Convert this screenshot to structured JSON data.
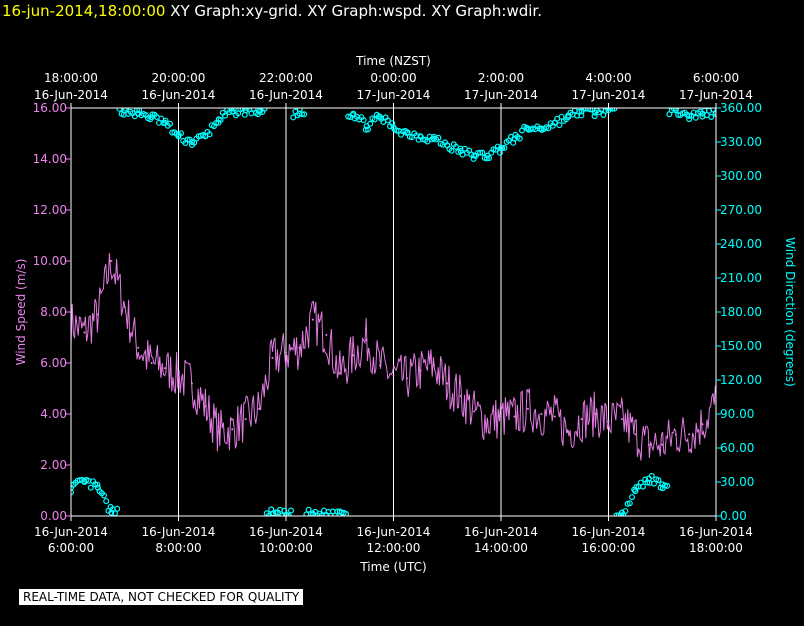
{
  "header": {
    "timestamp": "16-jun-2014,18:00:00",
    "graphs": "XY Graph:xy-grid.  XY Graph:wspd.  XY Graph:wdir."
  },
  "footer": {
    "note": "REAL-TIME DATA, NOT CHECKED FOR QUALITY"
  },
  "colors": {
    "speed": "#ee82ee",
    "direction": "#00ffff",
    "grid": "#ffffff",
    "text": "#ffffff"
  },
  "chart_data": {
    "type": "line",
    "x_top_label": "Time (NZST)",
    "x_bottom_label": "Time (UTC)",
    "y_left_label": "Wind Speed (m/s)",
    "y_right_label": "Wind Direction (degrees)",
    "top_ticks": [
      {
        "time": "18:00:00",
        "date": "16-Jun-2014"
      },
      {
        "time": "20:00:00",
        "date": "16-Jun-2014"
      },
      {
        "time": "22:00:00",
        "date": "16-Jun-2014"
      },
      {
        "time": "0:00:00",
        "date": "17-Jun-2014"
      },
      {
        "time": "2:00:00",
        "date": "17-Jun-2014"
      },
      {
        "time": "4:00:00",
        "date": "17-Jun-2014"
      },
      {
        "time": "6:00:00",
        "date": "17-Jun-2014"
      }
    ],
    "bottom_ticks": [
      {
        "date": "16-Jun-2014",
        "time": "6:00:00"
      },
      {
        "date": "16-Jun-2014",
        "time": "8:00:00"
      },
      {
        "date": "16-Jun-2014",
        "time": "10:00:00"
      },
      {
        "date": "16-Jun-2014",
        "time": "12:00:00"
      },
      {
        "date": "16-Jun-2014",
        "time": "14:00:00"
      },
      {
        "date": "16-Jun-2014",
        "time": "16:00:00"
      },
      {
        "date": "16-Jun-2014",
        "time": "18:00:00"
      }
    ],
    "y_left_ticks": [
      "0.00",
      "2.00",
      "4.00",
      "6.00",
      "8.00",
      "10.00",
      "12.00",
      "14.00",
      "16.00"
    ],
    "y_right_ticks": [
      "0.00",
      "30.00",
      "60.00",
      "90.00",
      "120.00",
      "150.00",
      "180.00",
      "210.00",
      "240.00",
      "270.00",
      "300.00",
      "330.00",
      "360.00"
    ],
    "x_range_utc_hours": [
      6,
      18
    ],
    "y_left_range": [
      0,
      16
    ],
    "y_right_range": [
      0,
      360
    ],
    "grid": "vertical",
    "wind_speed": {
      "marker": "line",
      "x_utc_hours": [
        6.0,
        6.25,
        6.5,
        6.75,
        7.0,
        7.25,
        7.5,
        7.75,
        8.0,
        8.25,
        8.5,
        8.75,
        9.0,
        9.25,
        9.5,
        9.75,
        10.0,
        10.25,
        10.5,
        10.75,
        11.0,
        11.25,
        11.5,
        11.75,
        12.0,
        12.25,
        12.5,
        12.75,
        13.0,
        13.25,
        13.5,
        13.75,
        14.0,
        14.25,
        14.5,
        14.75,
        15.0,
        15.25,
        15.5,
        15.75,
        16.0,
        16.25,
        16.5,
        16.75,
        17.0,
        17.25,
        17.5,
        17.75,
        18.0
      ],
      "values": [
        7.6,
        7.2,
        7.9,
        10.0,
        8.2,
        6.6,
        6.0,
        5.8,
        5.5,
        5.2,
        4.3,
        3.3,
        3.4,
        3.8,
        4.2,
        6.2,
        6.4,
        6.6,
        7.7,
        7.1,
        5.6,
        6.3,
        6.9,
        5.9,
        5.5,
        5.4,
        5.7,
        5.9,
        5.2,
        4.7,
        4.1,
        3.7,
        3.9,
        3.9,
        4.2,
        4.0,
        3.9,
        3.3,
        3.8,
        4.0,
        3.7,
        3.8,
        3.2,
        2.8,
        2.8,
        3.2,
        3.2,
        3.6,
        4.5
      ]
    },
    "wind_direction": {
      "marker": "circle",
      "x_utc_hours": [
        6.0,
        6.25,
        6.5,
        6.75,
        7.0,
        7.25,
        7.5,
        7.75,
        8.0,
        8.25,
        8.5,
        8.75,
        9.0,
        9.25,
        9.5,
        9.75,
        10.0,
        10.25,
        10.5,
        10.75,
        11.0,
        11.25,
        11.5,
        11.75,
        12.0,
        12.25,
        12.5,
        12.75,
        13.0,
        13.25,
        13.5,
        13.75,
        14.0,
        14.25,
        14.5,
        14.75,
        15.0,
        15.25,
        15.5,
        15.75,
        16.0,
        16.25,
        16.5,
        16.75,
        17.0,
        17.25,
        17.5,
        17.75,
        18.0
      ],
      "values": [
        25,
        30,
        25,
        3,
        358,
        355,
        352,
        347,
        335,
        330,
        335,
        350,
        357,
        358,
        357,
        2,
        1,
        355,
        2,
        1,
        4,
        355,
        344,
        352,
        343,
        338,
        335,
        333,
        327,
        322,
        318,
        318,
        325,
        333,
        342,
        342,
        347,
        352,
        357,
        356,
        358,
        3,
        22,
        33,
        28,
        358,
        353,
        355,
        356
      ]
    }
  }
}
